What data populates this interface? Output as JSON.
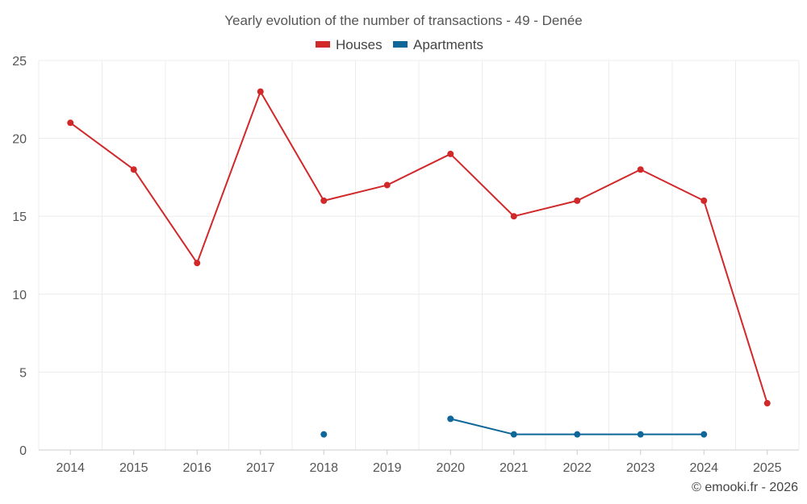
{
  "chart_data": {
    "type": "line",
    "title": "Yearly evolution of the number of transactions - 49 - Denée",
    "categories": [
      "2014",
      "2015",
      "2016",
      "2017",
      "2018",
      "2019",
      "2020",
      "2021",
      "2022",
      "2023",
      "2024",
      "2025"
    ],
    "series": [
      {
        "name": "Houses",
        "color": "#d1282a",
        "values": [
          21,
          18,
          12,
          23,
          16,
          17,
          19,
          15,
          16,
          18,
          16,
          3
        ]
      },
      {
        "name": "Apartments",
        "color": "#0e6699",
        "values": [
          null,
          null,
          null,
          null,
          1,
          null,
          2,
          1,
          1,
          1,
          1,
          null
        ]
      }
    ],
    "y_ticks": [
      0,
      5,
      10,
      15,
      20,
      25
    ],
    "ylim": [
      0,
      25
    ],
    "xlabel": "",
    "ylabel": "",
    "legend_position": "top-center",
    "grid": true
  },
  "credit": "© emooki.fr - 2026"
}
